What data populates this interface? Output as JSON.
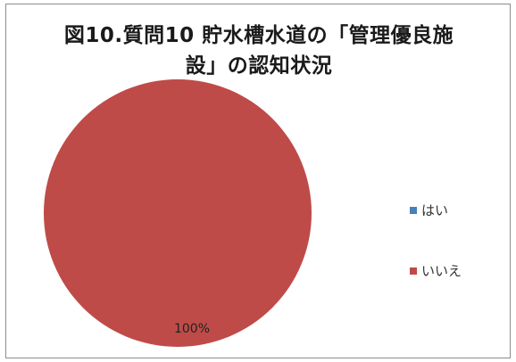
{
  "chart_data": {
    "type": "pie",
    "title_line1": "図10.質問10 貯水槽水道の「管理優良施",
    "title_line2": "設」の認知状況",
    "categories": [
      "はい",
      "いいえ"
    ],
    "values": [
      0,
      100
    ],
    "colors": [
      "#4a7ebb",
      "#be4b48"
    ],
    "data_labels": [
      "",
      "100%"
    ],
    "legend_position": "right"
  }
}
